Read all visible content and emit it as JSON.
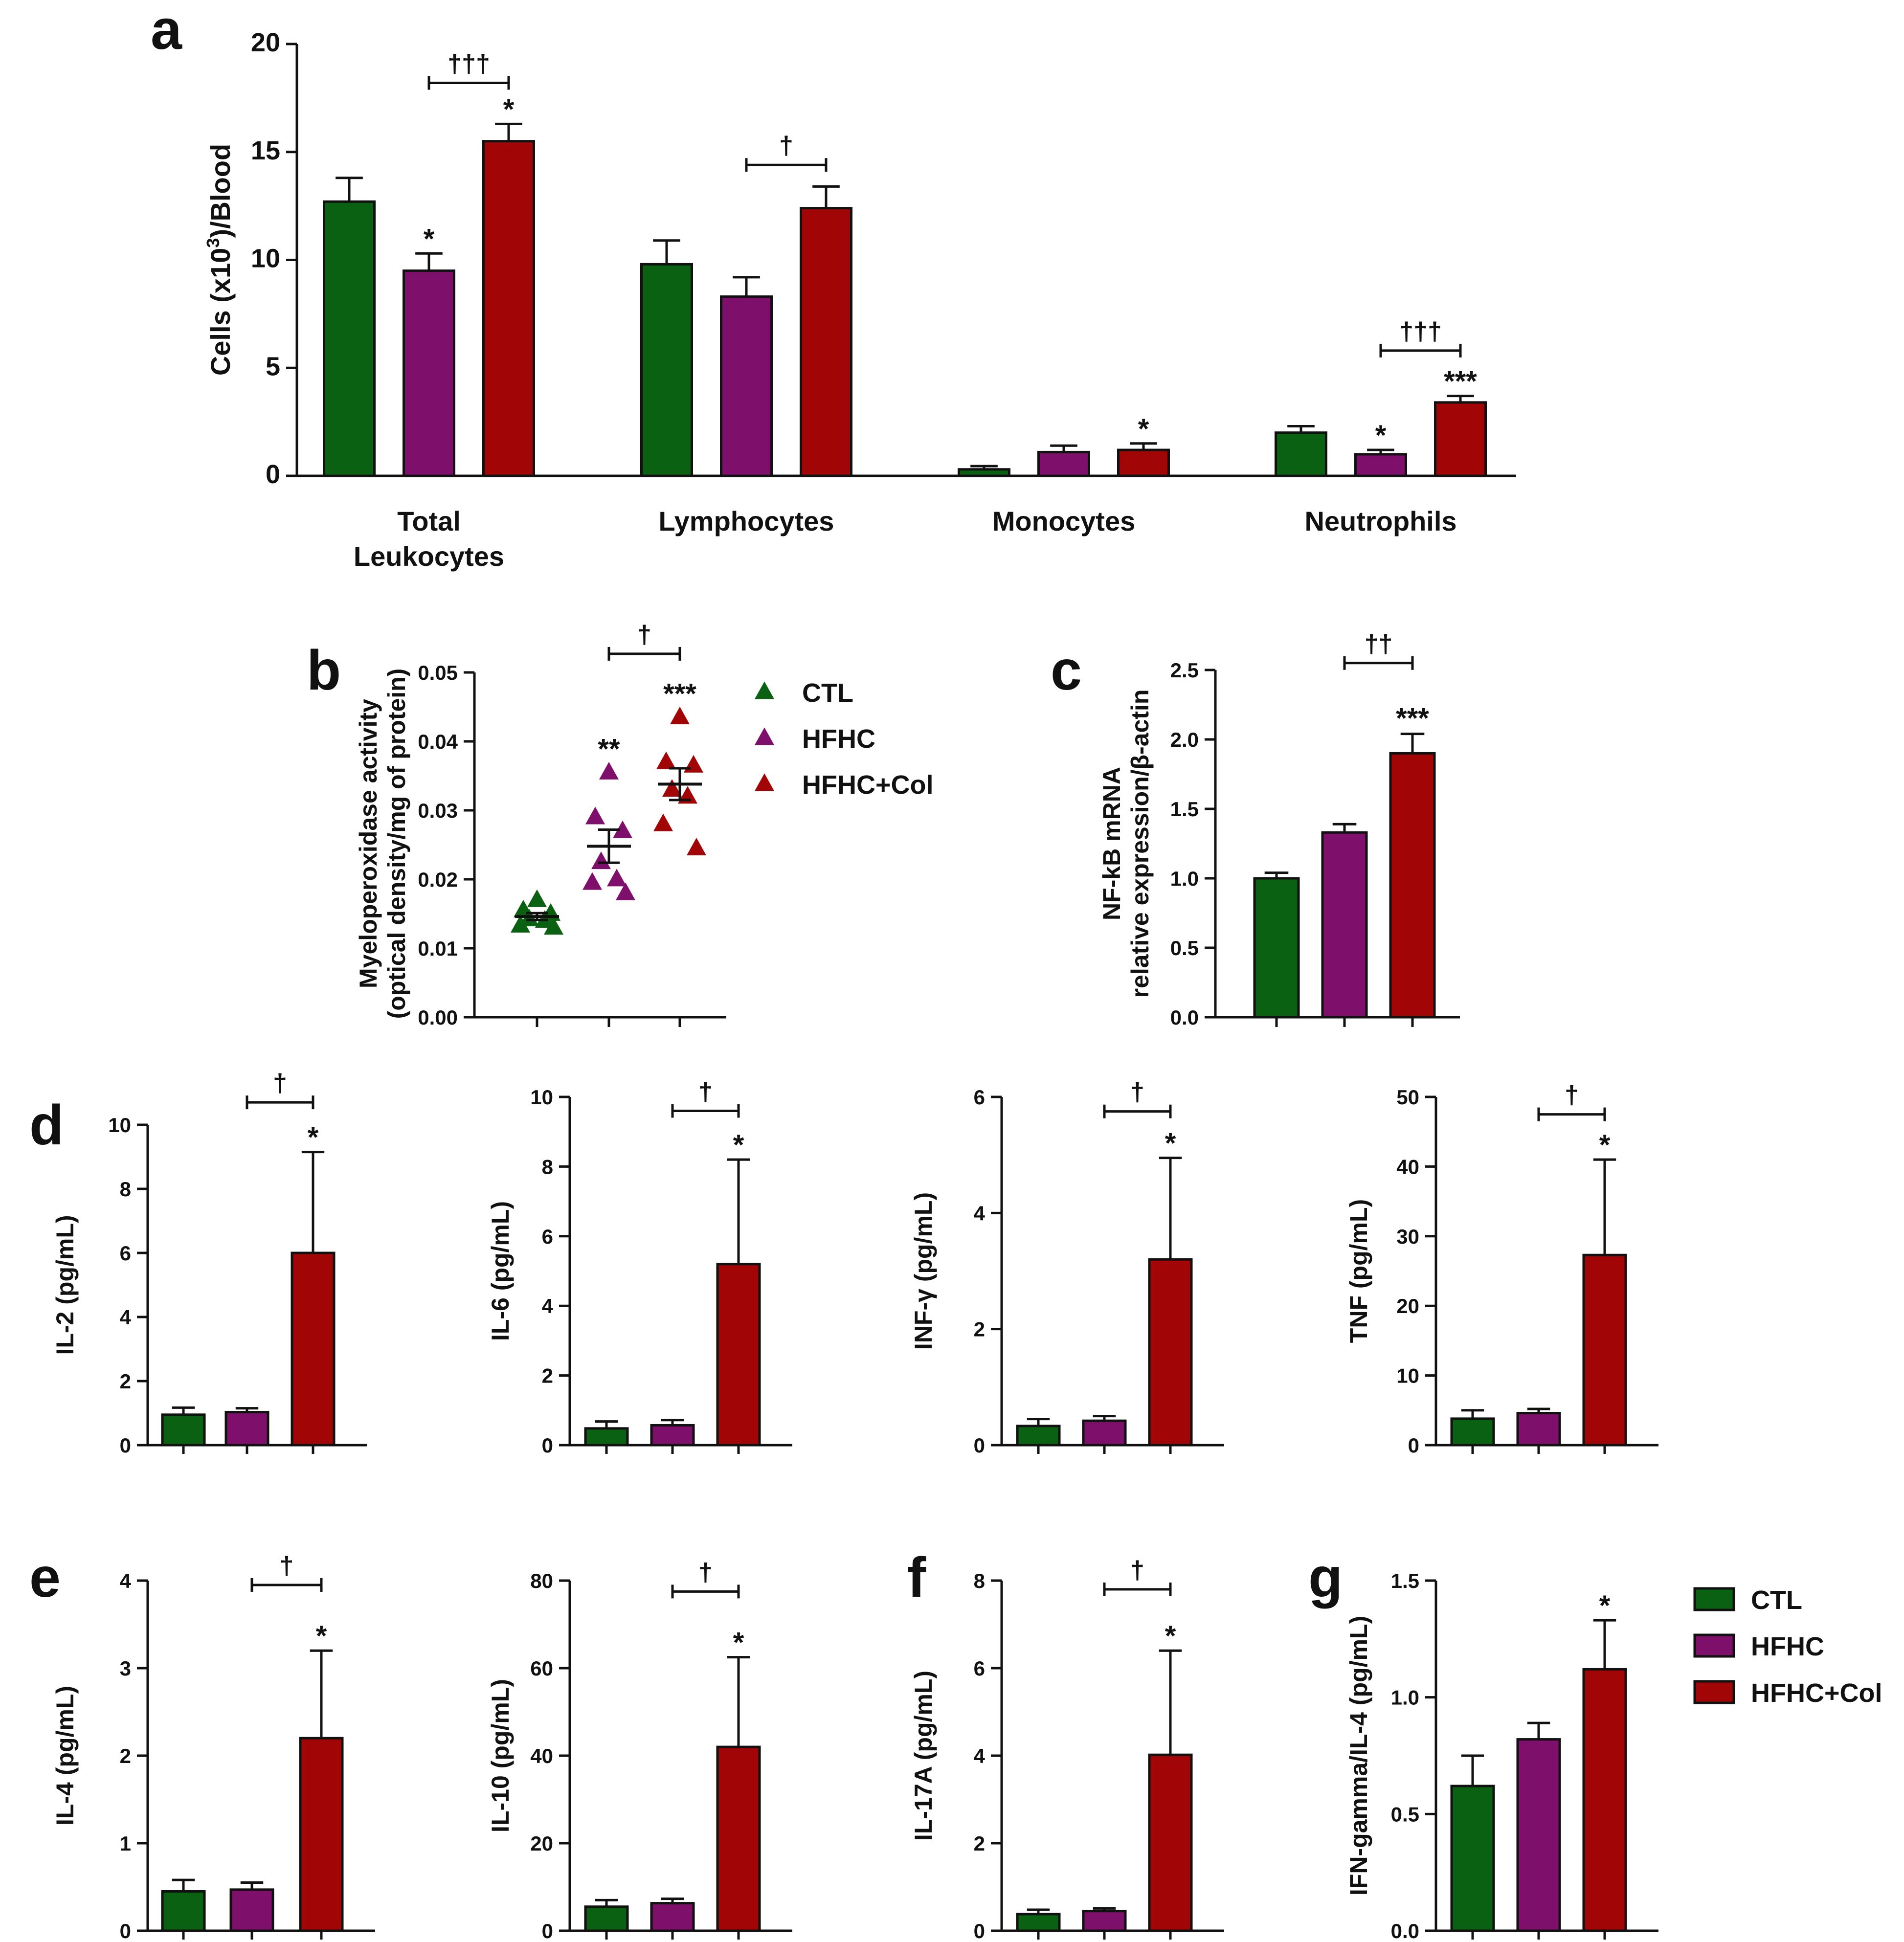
{
  "colors": {
    "CTL": "#0b6112",
    "HFHC": "#7e0f6a",
    "HFHC+Col": "#a20505",
    "axis": "#111111"
  },
  "groups": [
    "CTL",
    "HFHC",
    "HFHC+Col"
  ],
  "legend_b": [
    "CTL",
    "HFHC",
    "HFHC+Col"
  ],
  "legend_g": [
    "CTL",
    "HFHC",
    "HFHC+Col"
  ],
  "chart_data": [
    {
      "panel": "a",
      "type": "bar",
      "title": "",
      "ylabel": "Cells (x10³)/Blood",
      "ylabel_main": "Cells (x10",
      "ylabel_sup": "3",
      "ylabel_end": ")/Blood",
      "ylim": [
        0,
        20
      ],
      "yticks": [
        "0",
        "5",
        "10",
        "15",
        "20"
      ],
      "categories": [
        "Total Leukocytes",
        "Lymphocytes",
        "Monocytes",
        "Neutrophils"
      ],
      "category_lines": [
        [
          "Total",
          "Leukocytes"
        ],
        [
          "Lymphocytes"
        ],
        [
          "Monocytes"
        ],
        [
          "Neutrophils"
        ]
      ],
      "series": [
        {
          "name": "CTL",
          "values": [
            12.7,
            9.8,
            0.3,
            2.0
          ],
          "errors": [
            1.1,
            1.1,
            0.15,
            0.3
          ]
        },
        {
          "name": "HFHC",
          "values": [
            9.5,
            8.3,
            1.1,
            1.0
          ],
          "errors": [
            0.8,
            0.9,
            0.3,
            0.2
          ]
        },
        {
          "name": "HFHC+Col",
          "values": [
            15.5,
            12.4,
            1.2,
            3.4
          ],
          "errors": [
            0.8,
            1.0,
            0.3,
            0.3
          ]
        }
      ],
      "stars": [
        {
          "category": 0,
          "series": 1,
          "text": "*"
        },
        {
          "category": 0,
          "series": 2,
          "text": "*"
        },
        {
          "category": 2,
          "series": 2,
          "text": "*"
        },
        {
          "category": 3,
          "series": 1,
          "text": "*"
        },
        {
          "category": 3,
          "series": 2,
          "text": "***"
        }
      ],
      "brackets": [
        {
          "category": 0,
          "y": 18.2,
          "text": "†††"
        },
        {
          "category": 1,
          "y": 14.4,
          "text": "†"
        },
        {
          "category": 3,
          "y": 5.8,
          "text": "†††"
        }
      ]
    },
    {
      "panel": "b",
      "type": "scatter",
      "title": "",
      "ylabel": "Myeloperoxidase activity",
      "ylabel2": "(optical density/mg of protein)",
      "ylim": [
        0,
        0.05
      ],
      "yticks": [
        "0.00",
        "0.01",
        "0.02",
        "0.03",
        "0.04",
        "0.05"
      ],
      "series": [
        {
          "name": "CTL",
          "points": [
            0.017,
            0.0155,
            0.015,
            0.0142,
            0.014,
            0.0133,
            0.013
          ],
          "mean": 0.0146,
          "sem": 0.0005
        },
        {
          "name": "HFHC",
          "points": [
            0.0355,
            0.029,
            0.027,
            0.0225,
            0.02,
            0.0195,
            0.018
          ],
          "mean": 0.0248,
          "sem": 0.0024
        },
        {
          "name": "HFHC+Col",
          "points": [
            0.0435,
            0.037,
            0.0365,
            0.033,
            0.032,
            0.028,
            0.0245
          ],
          "mean": 0.0338,
          "sem": 0.0023
        }
      ],
      "stars": [
        {
          "series": 1,
          "y": 0.0375,
          "text": "**"
        },
        {
          "series": 2,
          "y": 0.0455,
          "text": "***"
        }
      ],
      "brackets": [
        {
          "from": 1,
          "to": 2,
          "y": 0.0527,
          "text": "†"
        }
      ]
    },
    {
      "panel": "c",
      "type": "bar",
      "title": "",
      "ylabel": "NF-kB mRNA",
      "ylabel2": "relative expression/β-actin",
      "ylim": [
        0,
        2.5
      ],
      "yticks": [
        "0.0",
        "0.5",
        "1.0",
        "1.5",
        "2.0",
        "2.5"
      ],
      "values": [
        1.0,
        1.33,
        1.9
      ],
      "errors": [
        0.04,
        0.06,
        0.14
      ],
      "stars": [
        {
          "bar": 2,
          "text": "***"
        }
      ],
      "brackets": [
        {
          "from": 1,
          "to": 2,
          "y": 2.55,
          "text": "††"
        }
      ]
    },
    {
      "panel": "d",
      "type": "bar",
      "ylabel": "IL-2 (pg/mL)",
      "ylim": [
        0,
        10
      ],
      "yticks": [
        "0",
        "2",
        "4",
        "6",
        "8",
        "10"
      ],
      "values": [
        0.95,
        1.03,
        6.0
      ],
      "errors": [
        0.22,
        0.12,
        3.15
      ],
      "stars": [
        {
          "bar": 2,
          "text": "*"
        }
      ],
      "brackets": [
        {
          "from": 1,
          "to": 2,
          "y": 10.7,
          "text": "†"
        }
      ]
    },
    {
      "panel": "",
      "type": "bar",
      "ylabel": "IL-6 (pg/mL)",
      "ylim": [
        0,
        10
      ],
      "yticks": [
        "0",
        "2",
        "4",
        "6",
        "8",
        "10"
      ],
      "values": [
        0.48,
        0.57,
        5.2
      ],
      "errors": [
        0.2,
        0.15,
        3.0
      ],
      "stars": [
        {
          "bar": 2,
          "text": "*"
        }
      ],
      "brackets": [
        {
          "from": 1,
          "to": 2,
          "y": 9.6,
          "text": "†"
        }
      ]
    },
    {
      "panel": "",
      "type": "bar",
      "ylabel": "INF-γ (pg/mL)",
      "ylim": [
        0,
        6
      ],
      "yticks": [
        "0",
        "2",
        "4",
        "6"
      ],
      "values": [
        0.33,
        0.42,
        3.2
      ],
      "errors": [
        0.12,
        0.08,
        1.75
      ],
      "stars": [
        {
          "bar": 2,
          "text": "*"
        }
      ],
      "brackets": [
        {
          "from": 1,
          "to": 2,
          "y": 5.75,
          "text": "†"
        }
      ]
    },
    {
      "panel": "",
      "type": "bar",
      "ylabel": "TNF (pg/mL)",
      "ylim": [
        0,
        50
      ],
      "yticks": [
        "0",
        "10",
        "20",
        "30",
        "40",
        "50"
      ],
      "values": [
        3.8,
        4.6,
        27.3
      ],
      "errors": [
        1.2,
        0.6,
        13.7
      ],
      "stars": [
        {
          "bar": 2,
          "text": "*"
        }
      ],
      "brackets": [
        {
          "from": 1,
          "to": 2,
          "y": 47.5,
          "text": "†"
        }
      ]
    },
    {
      "panel": "e",
      "type": "bar",
      "ylabel": "IL-4 (pg/mL)",
      "ylim": [
        0,
        4
      ],
      "yticks": [
        "0",
        "1",
        "2",
        "3",
        "4"
      ],
      "values": [
        0.45,
        0.47,
        2.2
      ],
      "errors": [
        0.13,
        0.08,
        1.0
      ],
      "stars": [
        {
          "bar": 2,
          "text": "*"
        }
      ],
      "brackets": [
        {
          "from": 1,
          "to": 2,
          "y": 3.95,
          "text": "†"
        }
      ]
    },
    {
      "panel": "",
      "type": "bar",
      "ylabel": "IL-10 (pg/mL)",
      "ylim": [
        0,
        80
      ],
      "yticks": [
        "0",
        "20",
        "40",
        "60",
        "80"
      ],
      "values": [
        5.5,
        6.3,
        42.0
      ],
      "errors": [
        1.5,
        1.0,
        20.5
      ],
      "stars": [
        {
          "bar": 2,
          "text": "*"
        }
      ],
      "brackets": [
        {
          "from": 1,
          "to": 2,
          "y": 77.5,
          "text": "†"
        }
      ]
    },
    {
      "panel": "f",
      "type": "bar",
      "ylabel": "IL-17A (pg/mL)",
      "ylim": [
        0,
        8
      ],
      "yticks": [
        "0",
        "2",
        "4",
        "6",
        "8"
      ],
      "values": [
        0.38,
        0.45,
        4.02
      ],
      "errors": [
        0.1,
        0.06,
        2.38
      ],
      "stars": [
        {
          "bar": 2,
          "text": "*"
        }
      ],
      "brackets": [
        {
          "from": 1,
          "to": 2,
          "y": 7.8,
          "text": "†"
        }
      ]
    },
    {
      "panel": "g",
      "type": "bar",
      "ylabel": "IFN-gamma/IL-4 (pg/mL)",
      "ylim": [
        0,
        1.5
      ],
      "yticks": [
        "0.0",
        "0.5",
        "1.0",
        "1.5"
      ],
      "values": [
        0.62,
        0.82,
        1.12
      ],
      "errors": [
        0.13,
        0.07,
        0.21
      ],
      "stars": [
        {
          "bar": 2,
          "text": "*"
        }
      ],
      "brackets": []
    }
  ]
}
